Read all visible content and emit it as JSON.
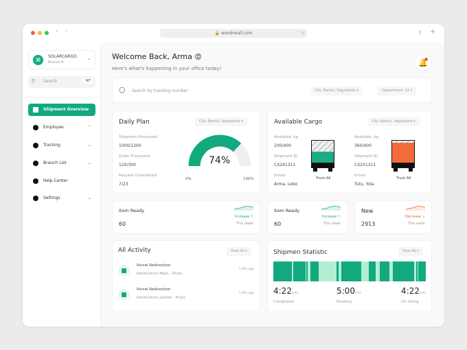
{
  "browser": {
    "url": "wondrwall.com"
  },
  "brand": {
    "name": "SOLARCARGO",
    "branch": "Branch A"
  },
  "sidebar": {
    "search_placeholder": "Search",
    "shortcut": "⌘F",
    "items": [
      {
        "label": "Shipment Overview",
        "icon": "grid-icon",
        "active": true
      },
      {
        "label": "Employee",
        "icon": "user-icon",
        "chevron": "up"
      },
      {
        "label": "Tracking",
        "icon": "gauge-icon",
        "chevron": "down"
      },
      {
        "label": "Branch List",
        "icon": "building-icon",
        "chevron": "down"
      },
      {
        "label": "Help Center",
        "icon": "help-icon"
      },
      {
        "label": "Settings",
        "icon": "gear-icon",
        "chevron": "down"
      }
    ]
  },
  "header": {
    "title": "Welcome Back, Arma",
    "emoji": "😡",
    "subtitle": "Here's what's happening in your office today!"
  },
  "search": {
    "placeholder": "Search by tracking number",
    "city": "City: Bantul, Yogyakarta",
    "department": "Department: 12"
  },
  "daily_plan": {
    "title": "Daily Plan",
    "filter": "City: Bantul, Yogyakarta",
    "stats": [
      {
        "label": "Shipment Processed",
        "value": "1000/1200"
      },
      {
        "label": "Order Processed",
        "value": "120/300"
      },
      {
        "label": "Request Considered",
        "value": "7/23"
      }
    ],
    "gauge_percent": 74,
    "gauge_label": "74%",
    "min": "0%",
    "max": "100%"
  },
  "cargo": {
    "title": "Available Cargo",
    "filter": "City: Bantul, Yogyakarta",
    "trucks": [
      {
        "available_label": "Available, kg",
        "available": "200/400",
        "id_label": "Shipment ID",
        "id": "CX241311",
        "driver_label": "Driver",
        "driver": "Arma, Lebo",
        "truck": "Truck A6",
        "fill": 0.5,
        "color": "#13a97f"
      },
      {
        "available_label": "Available, kg",
        "available": "360/400",
        "id_label": "Shipment ID",
        "id": "CX251311",
        "driver_label": "Driver",
        "driver": "Tutu, Yola",
        "truck": "Truck A6",
        "fill": 0.9,
        "color": "#f26430"
      }
    ]
  },
  "metrics": [
    {
      "label": "Item Ready",
      "value": "60",
      "trend": "Increase ↑",
      "period": "This week",
      "color": "#13a97f"
    },
    {
      "label": "Item Ready",
      "value": "60",
      "trend": "Increase ↑",
      "period": "This week",
      "color": "#13a97f"
    },
    {
      "label": "New",
      "value": "2913",
      "trend": "Decrease ↓",
      "period": "This week",
      "color": "#f26430"
    }
  ],
  "activity": {
    "title": "All Activity",
    "view_all": "View All",
    "items": [
      {
        "title": "Parcel Redirection",
        "subtitle": "Destination Mars - Pluto",
        "time": "1 Min ago"
      },
      {
        "title": "Parcel Redirection",
        "subtitle": "Destination Jupiter - Pluto",
        "time": "1 Min ago"
      }
    ]
  },
  "statistic": {
    "title": "Shipmen Statistic",
    "view_all": "View All",
    "values": [
      {
        "time": "4:22",
        "unit": "min",
        "label": "Completed"
      },
      {
        "time": "5:00",
        "unit": "min",
        "label": "Pending"
      },
      {
        "time": "4:22",
        "unit": "min",
        "label": "On Going"
      }
    ]
  },
  "colors": {
    "accent": "#13a97f",
    "accent_light": "#b2eed3",
    "alert": "#f26430"
  }
}
